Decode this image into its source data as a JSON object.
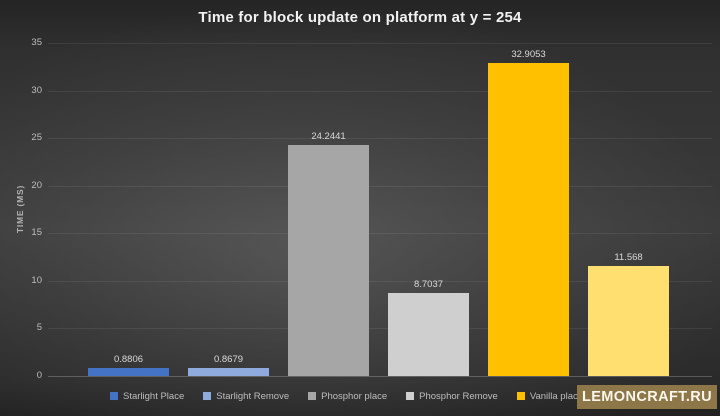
{
  "title": "Time for block update on platform at y = 254",
  "watermark": "LEMONCRAFT.RU",
  "chart_data": {
    "type": "bar",
    "title": "Time for block update on platform at y = 254",
    "xlabel": "",
    "ylabel": "TIME (MS)",
    "ylim": [
      0,
      35
    ],
    "yticks": [
      0,
      5,
      10,
      15,
      20,
      25,
      30,
      35
    ],
    "grid": true,
    "legend_position": "bottom",
    "categories": [
      "Starlight Place",
      "Starlight Remove",
      "Phosphor place",
      "Phosphor Remove",
      "Vanilla place",
      ""
    ],
    "values": [
      0.8806,
      0.8679,
      24.2441,
      8.7037,
      32.9053,
      11.568
    ],
    "data_labels": [
      "0.8806",
      "0.8679",
      "24.2441",
      "8.7037",
      "32.9053",
      "11.568"
    ],
    "bar_colors": [
      "#4472c4",
      "#8faadc",
      "#a6a6a6",
      "#cfcfcf",
      "#ffc000",
      "#ffdf70"
    ]
  },
  "legend": {
    "items": [
      {
        "label": "Starlight Place",
        "color": "#4472c4"
      },
      {
        "label": "Starlight Remove",
        "color": "#8faadc"
      },
      {
        "label": "Phosphor place",
        "color": "#a6a6a6"
      },
      {
        "label": "Phosphor Remove",
        "color": "#cfcfcf"
      },
      {
        "label": "Vanilla place",
        "color": "#ffc000"
      },
      {
        "label": "",
        "color": "#ffdf70"
      }
    ]
  },
  "colors": {
    "background_dark": "#262626",
    "background_light": "#4c4c4c",
    "gridline": "#525252",
    "text_primary": "#f2f2f2",
    "text_secondary": "#bdbdbd",
    "watermark_bg": "#8d7648",
    "watermark_text": "#fbf7ec"
  }
}
